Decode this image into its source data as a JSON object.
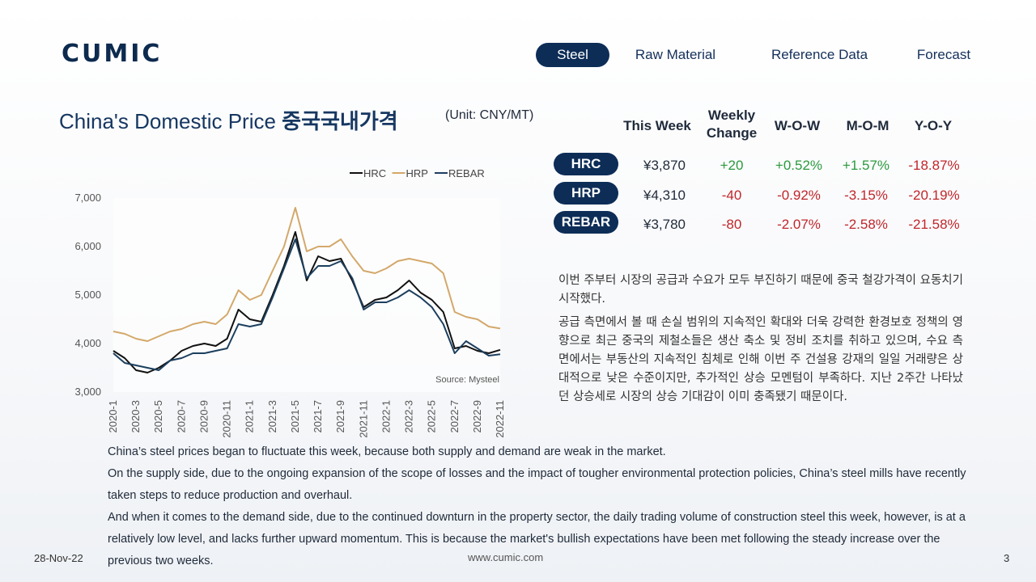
{
  "brand": {
    "logo": "CUMIC"
  },
  "nav": {
    "items": [
      {
        "label": "Steel",
        "active": true
      },
      {
        "label": "Raw Material",
        "active": false
      },
      {
        "label": "Reference Data",
        "active": false
      },
      {
        "label": "Forecast",
        "active": false
      }
    ]
  },
  "title": {
    "en": "China's Domestic Price ",
    "kr": "중국국내가격",
    "unit": "(Unit: CNY/MT)"
  },
  "price_table": {
    "headers": [
      "This Week",
      "Weekly Change",
      "W-O-W",
      "M-O-M",
      "Y-O-Y"
    ],
    "rows": [
      {
        "product": "HRC",
        "this_week": "¥3,870",
        "weekly_change": "+20",
        "wow": "+0.52%",
        "mom": "+1.57%",
        "yoy": "-18.87%"
      },
      {
        "product": "HRP",
        "this_week": "¥4,310",
        "weekly_change": "-40",
        "wow": "-0.92%",
        "mom": "-3.15%",
        "yoy": "-20.19%"
      },
      {
        "product": "REBAR",
        "this_week": "¥3,780",
        "weekly_change": "-80",
        "wow": "-2.07%",
        "mom": "-2.58%",
        "yoy": "-21.58%"
      }
    ]
  },
  "korean_text": {
    "p1": "이번 주부터 시장의 공급과 수요가 모두 부진하기 때문에 중국 철강가격이 요동치기 시작했다.",
    "p2": "공급 측면에서 볼 때 손실 범위의 지속적인 확대와 더욱 강력한 환경보호 정책의 영향으로 최근 중국의 제철소들은 생산 축소 및 정비 조치를 취하고 있으며, 수요 측면에서는 부동산의 지속적인 침체로 인해 이번 주 건설용 강재의 일일 거래량은 상대적으로 낮은 수준이지만, 추가적인 상승 모멘텀이 부족하다. 지난 2주간 나타났던 상승세로 시장의 상승 기대감이 이미 충족됐기 때문이다."
  },
  "english_text": {
    "p1": "China’s steel prices began to fluctuate this week, because both supply and demand are weak in the market.",
    "p2": "On the supply side, due to the ongoing expansion of the scope of losses and the impact of tougher environmental protection policies, China’s steel mills have recently taken steps to reduce production and overhaul.",
    "p3": "And when it comes to the demand side, due to the continued downturn in the property sector, the daily trading volume of construction steel this week, however, is at a relatively low level, and lacks further upward momentum. This is because the market's bullish expectations have been met following the steady increase over the previous two weeks."
  },
  "footer": {
    "date": "28-Nov-22",
    "url": "www.cumic.com",
    "page": "3"
  },
  "chart_data": {
    "type": "line",
    "source": "Source: Mysteel",
    "ylim": [
      3000,
      7000
    ],
    "yticks": [
      "7,000",
      "6,000",
      "5,000",
      "4,000",
      "3,000"
    ],
    "xticks": [
      "2020-1",
      "2020-3",
      "2020-5",
      "2020-7",
      "2020-9",
      "2020-11",
      "2021-1",
      "2021-3",
      "2021-5",
      "2021-7",
      "2021-9",
      "2021-11",
      "2022-1",
      "2022-3",
      "2022-5",
      "2022-7",
      "2022-9",
      "2022-11"
    ],
    "x": [
      "2020-1",
      "2020-2",
      "2020-3",
      "2020-4",
      "2020-5",
      "2020-6",
      "2020-7",
      "2020-8",
      "2020-9",
      "2020-10",
      "2020-11",
      "2020-12",
      "2021-1",
      "2021-2",
      "2021-3",
      "2021-4",
      "2021-5",
      "2021-6",
      "2021-7",
      "2021-8",
      "2021-9",
      "2021-10",
      "2021-11",
      "2021-12",
      "2022-1",
      "2022-2",
      "2022-3",
      "2022-4",
      "2022-5",
      "2022-6",
      "2022-7",
      "2022-8",
      "2022-9",
      "2022-10",
      "2022-11"
    ],
    "series": [
      {
        "name": "HRC",
        "color": "#111111",
        "values": [
          3850,
          3700,
          3450,
          3400,
          3500,
          3650,
          3850,
          3950,
          4000,
          3950,
          4100,
          4700,
          4500,
          4450,
          5000,
          5600,
          6300,
          5300,
          5800,
          5700,
          5750,
          5300,
          4750,
          4900,
          4950,
          5100,
          5300,
          5050,
          4900,
          4650,
          3900,
          3950,
          3850,
          3800,
          3870
        ]
      },
      {
        "name": "HRP",
        "color": "#d4a86a",
        "values": [
          4250,
          4200,
          4100,
          4050,
          4150,
          4250,
          4300,
          4400,
          4450,
          4400,
          4600,
          5100,
          4900,
          5000,
          5500,
          6000,
          6800,
          5900,
          6000,
          6000,
          6150,
          5800,
          5500,
          5450,
          5550,
          5700,
          5750,
          5700,
          5650,
          5450,
          4650,
          4550,
          4500,
          4350,
          4310
        ]
      },
      {
        "name": "REBAR",
        "color": "#1c3f5e",
        "values": [
          3800,
          3600,
          3550,
          3500,
          3450,
          3650,
          3700,
          3800,
          3800,
          3850,
          3900,
          4400,
          4350,
          4400,
          4950,
          5550,
          6150,
          5350,
          5600,
          5600,
          5700,
          5350,
          4700,
          4850,
          4850,
          4950,
          5100,
          4950,
          4750,
          4400,
          3800,
          4050,
          3900,
          3750,
          3780
        ]
      }
    ]
  }
}
